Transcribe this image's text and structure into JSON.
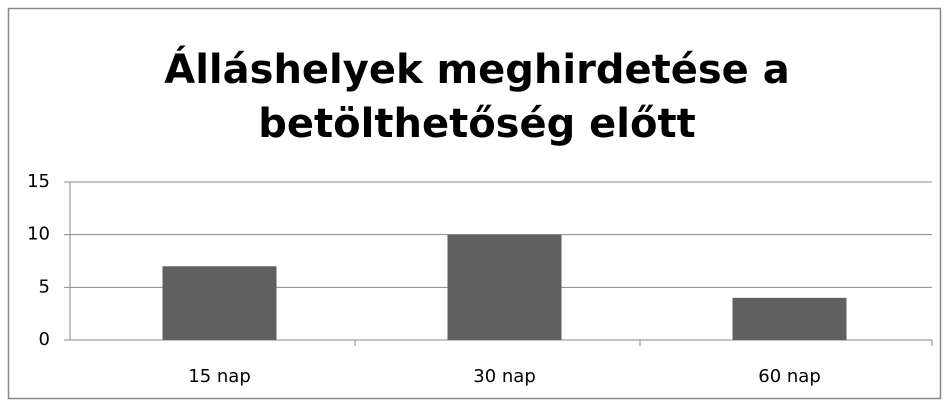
{
  "chart_data": {
    "type": "bar",
    "title": [
      "Álláshelyek meghirdetése a",
      "betölthetőség előtt"
    ],
    "categories": [
      "15 nap",
      "30 nap",
      "60 nap"
    ],
    "values": [
      7,
      10,
      4
    ],
    "color": "#606060",
    "ylim": [
      0,
      15
    ],
    "yticks": [
      0,
      5,
      10,
      15
    ],
    "grid": true
  }
}
